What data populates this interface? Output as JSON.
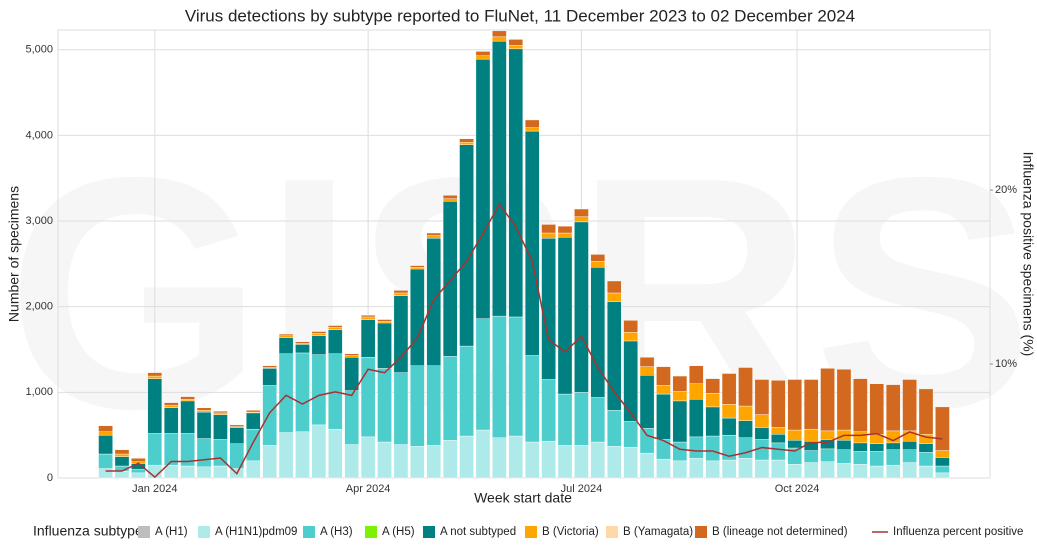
{
  "chart_data": {
    "type": "bar",
    "stacked": true,
    "title": "Virus detections by subtype reported to FluNet, 11 December 2023 to 02 December 2024",
    "watermark": "GISRS",
    "x_label": "Week start date",
    "y_label": "Number of specimens",
    "y2_label": "Influenza positive specimens (%)",
    "legend_title": "Influenza subtype",
    "grid": true,
    "categories": [
      null,
      null,
      null,
      null,
      null,
      null,
      null,
      null,
      null,
      null,
      null,
      null,
      null,
      null,
      null,
      null,
      null,
      null,
      null,
      null,
      null,
      null,
      null,
      null,
      null,
      null,
      null,
      null,
      null,
      null,
      null,
      null,
      null,
      null,
      null,
      null,
      null,
      null,
      null,
      null,
      null,
      null,
      null,
      null,
      null,
      null,
      null,
      null,
      null,
      null,
      null,
      null
    ],
    "xlim": [
      -2.9,
      53.9
    ],
    "xticks": [
      {
        "value": 3,
        "label": "Jan 2024"
      },
      {
        "value": 16,
        "label": "Apr 2024"
      },
      {
        "value": 29,
        "label": "Jul 2024"
      },
      {
        "value": 42.14,
        "label": "Oct 2024"
      }
    ],
    "ylim": [
      0,
      5230
    ],
    "yticks": [
      0,
      {
        "value": 1000,
        "label": "1,000"
      },
      {
        "value": 2000,
        "label": "2,000"
      },
      {
        "value": 3000,
        "label": "3,000"
      },
      {
        "value": 4000,
        "label": "4,000"
      },
      {
        "value": 5000,
        "label": "5,000"
      }
    ],
    "y2lim": [
      3.45,
      29.2
    ],
    "y2ticks": [
      {
        "value": 10,
        "label": "10%"
      },
      {
        "value": 20,
        "label": "20%"
      }
    ],
    "series": [
      {
        "name": "A (H1)",
        "color": "#bdbdbd",
        "values": [
          0,
          0,
          0,
          0,
          0,
          0,
          0,
          0,
          0,
          0,
          0,
          0,
          0,
          0,
          0,
          0,
          0,
          0,
          0,
          0,
          0,
          0,
          0,
          0,
          0,
          0,
          0,
          0,
          0,
          0,
          0,
          0,
          0,
          0,
          0,
          0,
          0,
          0,
          0,
          0,
          0,
          0,
          0,
          0,
          0,
          0,
          0,
          0,
          0,
          0,
          0,
          0
        ]
      },
      {
        "name": "A (H1N1)pdm09",
        "color": "#aeeaea",
        "values": [
          110,
          80,
          60,
          150,
          150,
          140,
          130,
          140,
          110,
          200,
          380,
          530,
          540,
          620,
          570,
          390,
          480,
          420,
          390,
          370,
          380,
          440,
          490,
          560,
          470,
          490,
          420,
          430,
          380,
          380,
          420,
          370,
          360,
          290,
          220,
          200,
          230,
          200,
          210,
          230,
          210,
          210,
          160,
          180,
          190,
          170,
          160,
          140,
          150,
          180,
          140,
          60
        ]
      },
      {
        "name": "A (H3)",
        "color": "#4ecdcd",
        "values": [
          170,
          60,
          40,
          370,
          370,
          380,
          330,
          310,
          290,
          370,
          700,
          920,
          920,
          820,
          880,
          630,
          930,
          860,
          840,
          940,
          930,
          980,
          1050,
          1300,
          1420,
          1390,
          1010,
          720,
          600,
          620,
          520,
          420,
          300,
          290,
          230,
          220,
          250,
          290,
          290,
          240,
          240,
          200,
          190,
          140,
          150,
          160,
          150,
          170,
          180,
          150,
          160,
          80
        ]
      },
      {
        "name": "A (H5)",
        "color": "#7ff000",
        "values": [
          0,
          0,
          0,
          0,
          0,
          0,
          0,
          0,
          0,
          0,
          0,
          0,
          0,
          0,
          0,
          0,
          0,
          0,
          0,
          0,
          0,
          0,
          0,
          0,
          0,
          0,
          0,
          0,
          0,
          0,
          0,
          0,
          0,
          0,
          0,
          0,
          0,
          0,
          0,
          0,
          0,
          0,
          0,
          0,
          0,
          0,
          0,
          0,
          0,
          0,
          0,
          0
        ]
      },
      {
        "name": "A not subtyped",
        "color": "#008080",
        "values": [
          220,
          110,
          70,
          640,
          300,
          380,
          310,
          290,
          190,
          190,
          200,
          190,
          100,
          220,
          280,
          390,
          440,
          530,
          900,
          1130,
          1490,
          1810,
          2350,
          3030,
          3210,
          3130,
          2620,
          1650,
          1830,
          1990,
          1520,
          1270,
          940,
          620,
          530,
          480,
          440,
          340,
          200,
          200,
          140,
          100,
          90,
          110,
          110,
          110,
          100,
          90,
          80,
          100,
          100,
          100
        ]
      },
      {
        "name": "B (Victoria)",
        "color": "#ffa500",
        "values": [
          40,
          30,
          20,
          30,
          30,
          20,
          20,
          20,
          10,
          10,
          10,
          20,
          10,
          30,
          30,
          20,
          30,
          20,
          30,
          20,
          30,
          30,
          30,
          40,
          50,
          40,
          40,
          60,
          50,
          60,
          70,
          100,
          100,
          100,
          100,
          110,
          180,
          160,
          160,
          170,
          150,
          80,
          120,
          140,
          100,
          120,
          130,
          110,
          140,
          120,
          110,
          80
        ]
      },
      {
        "name": "B (Yamagata)",
        "color": "#ffd8a8",
        "values": [
          0,
          0,
          0,
          0,
          0,
          0,
          0,
          0,
          0,
          0,
          0,
          0,
          0,
          0,
          0,
          0,
          0,
          0,
          0,
          0,
          0,
          0,
          0,
          0,
          0,
          0,
          0,
          0,
          0,
          0,
          0,
          0,
          0,
          0,
          0,
          0,
          0,
          0,
          0,
          0,
          0,
          0,
          0,
          0,
          0,
          0,
          0,
          0,
          0,
          0,
          0,
          0
        ]
      },
      {
        "name": "B (lineage not determined)",
        "color": "#d2691e",
        "values": [
          70,
          50,
          40,
          40,
          30,
          30,
          30,
          20,
          20,
          20,
          20,
          20,
          20,
          20,
          20,
          20,
          20,
          20,
          30,
          20,
          30,
          40,
          40,
          50,
          70,
          70,
          90,
          100,
          80,
          90,
          80,
          140,
          140,
          110,
          220,
          180,
          210,
          170,
          360,
          450,
          410,
          550,
          590,
          580,
          730,
          710,
          620,
          590,
          540,
          600,
          530,
          510
        ]
      },
      {
        "name": "Influenza percent positive",
        "color": "#a83232",
        "type": "line",
        "axis": "y2",
        "values": [
          3.85,
          3.85,
          4.3,
          3.5,
          4.4,
          4.4,
          4.5,
          4.6,
          3.7,
          5.5,
          7.2,
          8.2,
          7.7,
          8.2,
          8.4,
          8.2,
          9.7,
          9.5,
          10.4,
          11.5,
          13.7,
          14.8,
          15.9,
          17.5,
          19.2,
          17.9,
          15.9,
          11.4,
          10.7,
          11.6,
          9.8,
          8.4,
          7.2,
          5.9,
          5.6,
          5.1,
          5.0,
          5.0,
          4.7,
          4.9,
          5.2,
          5.1,
          5.0,
          5.5,
          5.5,
          5.9,
          5.9,
          6.0,
          5.6,
          6.1,
          5.8,
          5.7
        ]
      }
    ]
  }
}
